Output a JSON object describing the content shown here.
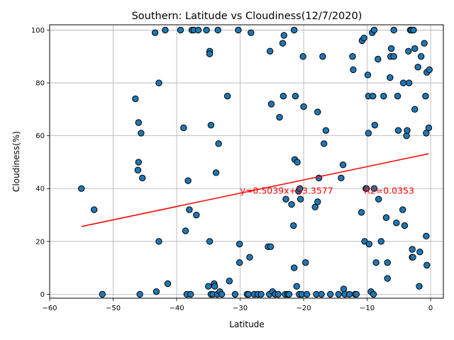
{
  "chart_data": {
    "type": "scatter",
    "title": "Southern: Latitude vs Cloudiness(12/7/2020)",
    "xlabel": "Latitude",
    "ylabel": "Cloudiness(%)",
    "xlim": [
      -60,
      2
    ],
    "ylim": [
      -1.5,
      102
    ],
    "xticks": [
      -60,
      -50,
      -40,
      -30,
      -20,
      -10,
      0
    ],
    "yticks": [
      0,
      20,
      40,
      60,
      80,
      100
    ],
    "grid": true,
    "colors": {
      "marker_fill": "#1f77b4",
      "marker_edge": "#000000",
      "regression": "#ff0000",
      "annotation": "#ff0000"
    },
    "regression": {
      "slope": 0.5039,
      "intercept": 53.3577,
      "x_range": [
        -55,
        -0.3
      ]
    },
    "annotations": [
      {
        "text": "y=0.5039x+53.3577",
        "x": -30,
        "y": 38
      },
      {
        "text": "R2=0.0353",
        "x": -10.5,
        "y": 38
      }
    ],
    "points": [
      [
        -55,
        40
      ],
      [
        -53,
        32
      ],
      [
        -51.7,
        0
      ],
      [
        -46.5,
        74
      ],
      [
        -46,
        65
      ],
      [
        -46,
        50
      ],
      [
        -46.1,
        47
      ],
      [
        -45.6,
        61
      ],
      [
        -45.4,
        44
      ],
      [
        -45.8,
        0
      ],
      [
        -43.4,
        99
      ],
      [
        -43.2,
        1
      ],
      [
        -42.8,
        80
      ],
      [
        -42.8,
        20
      ],
      [
        -41.8,
        100
      ],
      [
        -41.4,
        4
      ],
      [
        -39.4,
        100
      ],
      [
        -38.9,
        63
      ],
      [
        -38.6,
        24
      ],
      [
        -38.2,
        43
      ],
      [
        -38,
        32
      ],
      [
        -38.4,
        0
      ],
      [
        -37.8,
        0
      ],
      [
        -37.6,
        100
      ],
      [
        -37.3,
        100
      ],
      [
        -36.9,
        30
      ],
      [
        -36.6,
        100
      ],
      [
        -35.3,
        100
      ],
      [
        -35,
        3
      ],
      [
        -34.8,
        92
      ],
      [
        -34.8,
        91
      ],
      [
        -34.8,
        20
      ],
      [
        -34.6,
        64
      ],
      [
        -34.6,
        0
      ],
      [
        -34.3,
        0
      ],
      [
        -34.1,
        4
      ],
      [
        -34,
        3
      ],
      [
        -33.8,
        46
      ],
      [
        -33.6,
        0
      ],
      [
        -33.5,
        100
      ],
      [
        -33.4,
        57
      ],
      [
        -33.2,
        1
      ],
      [
        -32.9,
        0
      ],
      [
        -32,
        75
      ],
      [
        -31.7,
        5
      ],
      [
        -30.8,
        0
      ],
      [
        -30.3,
        100
      ],
      [
        -30.1,
        19
      ],
      [
        -30.1,
        12
      ],
      [
        -28.9,
        0
      ],
      [
        -28.7,
        0
      ],
      [
        -28.5,
        14
      ],
      [
        -28.3,
        99
      ],
      [
        -27.8,
        0
      ],
      [
        -27.2,
        0
      ],
      [
        -26.7,
        0
      ],
      [
        -25.6,
        18
      ],
      [
        -25.4,
        0
      ],
      [
        -25.3,
        92
      ],
      [
        -25.2,
        18
      ],
      [
        -25.1,
        72
      ],
      [
        -24.9,
        1
      ],
      [
        -24.5,
        0
      ],
      [
        -24,
        0
      ],
      [
        -23.8,
        67
      ],
      [
        -23.3,
        95
      ],
      [
        -23.2,
        75
      ],
      [
        -23.1,
        98
      ],
      [
        -22.9,
        0
      ],
      [
        -22.8,
        36
      ],
      [
        -22.5,
        0
      ],
      [
        -22.3,
        0
      ],
      [
        -21.9,
        34
      ],
      [
        -21.6,
        26
      ],
      [
        -21.5,
        10
      ],
      [
        -21.5,
        100
      ],
      [
        -21.4,
        51
      ],
      [
        -21.3,
        75
      ],
      [
        -21.1,
        3
      ],
      [
        -21,
        50
      ],
      [
        -20.8,
        39
      ],
      [
        -20.7,
        0
      ],
      [
        -20.6,
        40
      ],
      [
        -20.5,
        36
      ],
      [
        -20.3,
        0
      ],
      [
        -20.1,
        90
      ],
      [
        -20,
        71
      ],
      [
        -19.7,
        12
      ],
      [
        -19.5,
        0
      ],
      [
        -18.2,
        33
      ],
      [
        -18,
        0
      ],
      [
        -17.8,
        69
      ],
      [
        -17.8,
        35
      ],
      [
        -17.6,
        44
      ],
      [
        -17.2,
        0
      ],
      [
        -17,
        90
      ],
      [
        -16.8,
        57
      ],
      [
        -16.5,
        62
      ],
      [
        -15.8,
        0
      ],
      [
        -14.5,
        0
      ],
      [
        -14.1,
        44
      ],
      [
        -13.8,
        49
      ],
      [
        -13.7,
        2
      ],
      [
        -13.5,
        0
      ],
      [
        -12.8,
        0
      ],
      [
        -12.3,
        90
      ],
      [
        -12.2,
        85
      ],
      [
        -11.9,
        0
      ],
      [
        -11.7,
        0
      ],
      [
        -10.9,
        31
      ],
      [
        -10.8,
        96
      ],
      [
        -10.5,
        97
      ],
      [
        -10.4,
        20
      ],
      [
        -10.2,
        40
      ],
      [
        -10.1,
        40
      ],
      [
        -9.9,
        83
      ],
      [
        -9.8,
        75
      ],
      [
        -9.8,
        61
      ],
      [
        -9.7,
        19
      ],
      [
        -9.4,
        1
      ],
      [
        -9.2,
        99
      ],
      [
        -9.1,
        75
      ],
      [
        -9,
        0
      ],
      [
        -8.9,
        100
      ],
      [
        -8.9,
        40
      ],
      [
        -8.8,
        64
      ],
      [
        -8.6,
        12
      ],
      [
        -8.3,
        89
      ],
      [
        -8.2,
        36
      ],
      [
        -7.8,
        20
      ],
      [
        -7.4,
        75
      ],
      [
        -7,
        29
      ],
      [
        -6.8,
        12
      ],
      [
        -6.8,
        6
      ],
      [
        -6.4,
        82
      ],
      [
        -6.3,
        90
      ],
      [
        -6.2,
        93
      ],
      [
        -5.8,
        90
      ],
      [
        -5.8,
        100
      ],
      [
        -5.4,
        27
      ],
      [
        -5.2,
        75
      ],
      [
        -5.1,
        62
      ],
      [
        -4.4,
        32
      ],
      [
        -4.3,
        80
      ],
      [
        -4.1,
        26
      ],
      [
        -3.8,
        60
      ],
      [
        -3.7,
        62
      ],
      [
        -3.5,
        92
      ],
      [
        -3.4,
        80
      ],
      [
        -3.2,
        100
      ],
      [
        -3,
        100
      ],
      [
        -2.9,
        17
      ],
      [
        -2.9,
        14
      ],
      [
        -2.8,
        14
      ],
      [
        -2.7,
        100
      ],
      [
        -2.5,
        93
      ],
      [
        -2.5,
        70
      ],
      [
        -2,
        86
      ],
      [
        -1.8,
        3
      ],
      [
        -1.7,
        16
      ],
      [
        -1.5,
        90
      ],
      [
        -1,
        95
      ],
      [
        -0.8,
        75
      ],
      [
        -0.7,
        61
      ],
      [
        -0.7,
        22
      ],
      [
        -0.6,
        11
      ],
      [
        -0.6,
        84
      ],
      [
        -0.3,
        63
      ],
      [
        -0.2,
        85
      ]
    ]
  }
}
